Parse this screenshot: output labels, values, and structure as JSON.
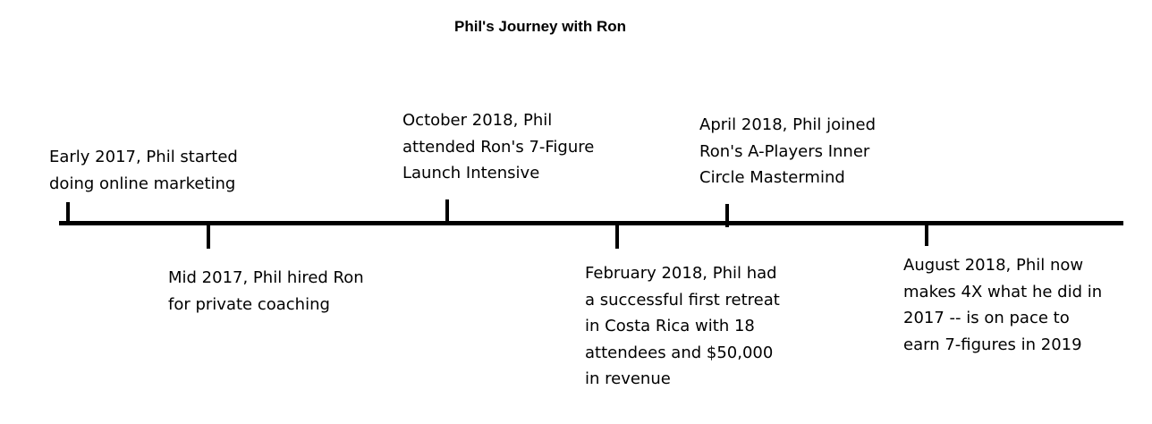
{
  "title": "Phil's Journey with Ron",
  "events": [
    {
      "text": "Early 2017, Phil started\ndoing online marketing",
      "position": "above"
    },
    {
      "text": "Mid 2017, Phil hired Ron\nfor private coaching",
      "position": "below"
    },
    {
      "text": "October 2018, Phil\nattended Ron's 7-Figure\nLaunch Intensive",
      "position": "above"
    },
    {
      "text": "February 2018, Phil had\na successful first retreat\nin Costa Rica with 18\nattendees and $50,000\nin revenue",
      "position": "below"
    },
    {
      "text": "April 2018, Phil joined\nRon's A-Players Inner\nCircle Mastermind",
      "position": "above"
    },
    {
      "text": "August 2018, Phil now\nmakes 4X what he did in\n2017 -- is on pace to\nearn 7-figures in 2019",
      "position": "below"
    }
  ]
}
